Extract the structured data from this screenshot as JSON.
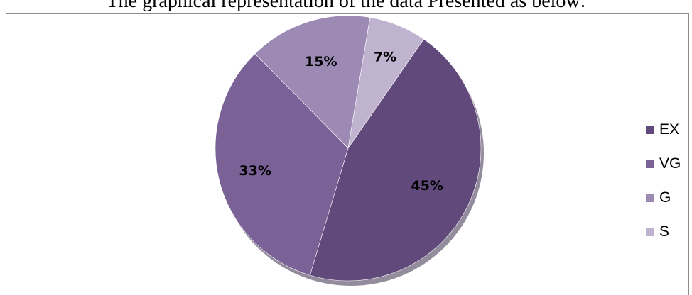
{
  "caption": "The graphical representation of the data Presented as below:",
  "chart_data": {
    "type": "pie",
    "title": "",
    "categories": [
      "EX",
      "VG",
      "G",
      "S"
    ],
    "values": [
      45,
      33,
      15,
      7
    ],
    "labels": [
      "45%",
      "33%",
      "15%",
      "7%"
    ],
    "colors": [
      "#614a7b",
      "#7a6297",
      "#9c8ab4",
      "#bfb3cf"
    ],
    "legend_position": "right",
    "start_direction": "clockwise from top-right"
  }
}
